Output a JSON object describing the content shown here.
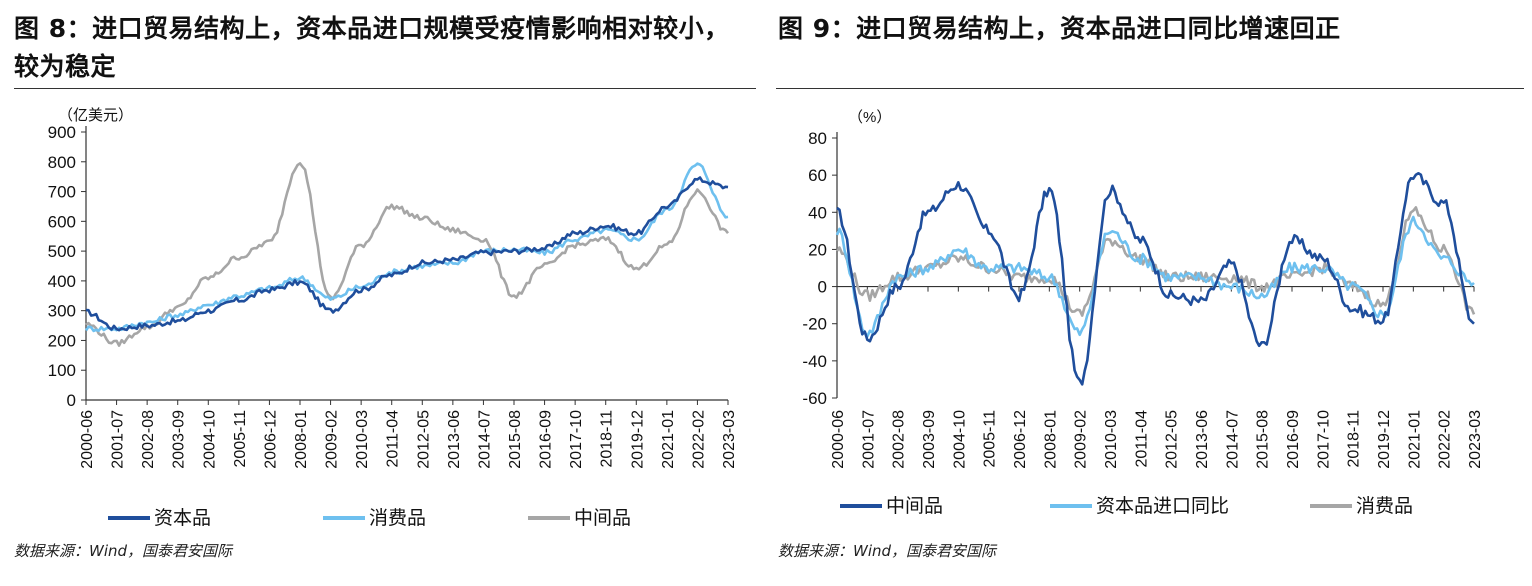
{
  "colors": {
    "dark_blue": "#1f4e9c",
    "light_blue": "#6ec0ef",
    "gray": "#a6a6a6",
    "axis": "#333333"
  },
  "left": {
    "title": "图 8：进口贸易结构上，资本品进口规模受疫情影响相对较小，较为稳定",
    "source": "数据来源：Wind，国泰君安国际"
  },
  "right": {
    "title": "图 9：进口贸易结构上，资本品进口同比增速回正",
    "source": "数据来源：Wind，国泰君安国际"
  },
  "chart_data": [
    {
      "type": "line",
      "unit": "（亿美元）",
      "ylim": [
        0,
        900
      ],
      "yticks": [
        0,
        100,
        200,
        300,
        400,
        500,
        600,
        700,
        800,
        900
      ],
      "categories": [
        "2000-06",
        "2001-07",
        "2002-08",
        "2003-09",
        "2004-10",
        "2005-11",
        "2006-12",
        "2008-01",
        "2009-02",
        "2010-03",
        "2011-04",
        "2012-05",
        "2013-06",
        "2014-07",
        "2015-08",
        "2016-09",
        "2017-10",
        "2018-11",
        "2019-12",
        "2021-01",
        "2022-02",
        "2023-03"
      ],
      "series": [
        {
          "name": "资本品",
          "color": "#1f4e9c",
          "values": [
            295,
            240,
            250,
            265,
            300,
            335,
            370,
            395,
            300,
            370,
            420,
            460,
            470,
            495,
            500,
            510,
            560,
            585,
            560,
            650,
            740,
            715
          ]
        },
        {
          "name": "消费品",
          "color": "#6ec0ef",
          "values": [
            240,
            240,
            260,
            285,
            320,
            350,
            375,
            410,
            340,
            380,
            430,
            450,
            460,
            500,
            505,
            495,
            540,
            570,
            540,
            640,
            790,
            615
          ]
        },
        {
          "name": "中间品",
          "color": "#a6a6a6",
          "values": [
            255,
            190,
            245,
            310,
            410,
            480,
            530,
            800,
            340,
            520,
            650,
            610,
            570,
            540,
            350,
            450,
            520,
            540,
            440,
            520,
            700,
            560
          ]
        }
      ]
    },
    {
      "type": "line",
      "unit": "（%）",
      "ylim": [
        -60,
        80
      ],
      "yticks": [
        -60,
        -40,
        -20,
        0,
        20,
        40,
        60,
        80
      ],
      "categories": [
        "2000-06",
        "2001-07",
        "2002-08",
        "2003-09",
        "2004-10",
        "2005-11",
        "2006-12",
        "2008-01",
        "2009-02",
        "2010-03",
        "2011-04",
        "2012-05",
        "2013-06",
        "2014-07",
        "2015-08",
        "2016-09",
        "2017-10",
        "2018-11",
        "2019-12",
        "2021-01",
        "2022-02",
        "2023-03"
      ],
      "series": [
        {
          "name": "中间品",
          "color": "#1f4e9c",
          "values": [
            40,
            -28,
            0,
            40,
            55,
            30,
            -5,
            52,
            -52,
            52,
            25,
            -5,
            -8,
            12,
            -32,
            25,
            15,
            -12,
            -18,
            60,
            45,
            -20
          ]
        },
        {
          "name": "资本品进口同比",
          "color": "#6ec0ef",
          "values": [
            30,
            -25,
            5,
            10,
            20,
            10,
            10,
            5,
            -25,
            30,
            15,
            5,
            5,
            0,
            -5,
            10,
            10,
            0,
            -15,
            35,
            15,
            2
          ]
        },
        {
          "name": "消费品",
          "color": "#a6a6a6",
          "values": [
            20,
            -5,
            5,
            10,
            15,
            10,
            5,
            5,
            -15,
            25,
            15,
            5,
            5,
            5,
            0,
            5,
            10,
            0,
            -10,
            40,
            20,
            -15
          ]
        }
      ]
    }
  ]
}
